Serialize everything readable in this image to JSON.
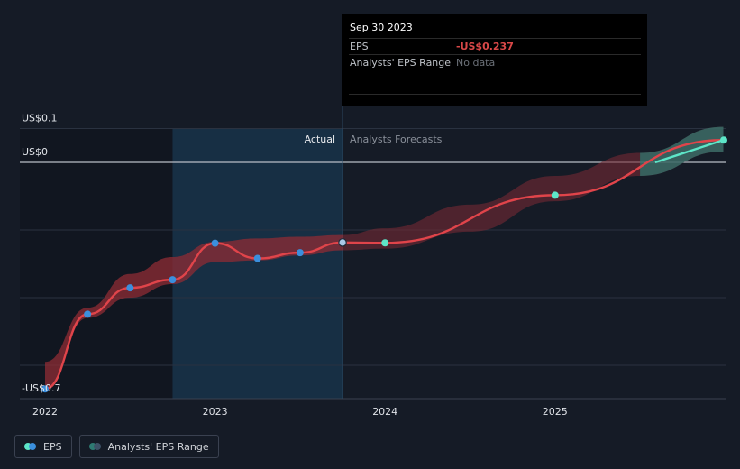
{
  "chart_data": {
    "type": "line",
    "y_ticks": [
      {
        "value": 0.1,
        "label": "US$0.1"
      },
      {
        "value": 0,
        "label": "US$0"
      },
      {
        "value": -0.7,
        "label": "-US$0.7"
      }
    ],
    "x_ticks": [
      {
        "value": 2022.0,
        "label": "2022"
      },
      {
        "value": 2023.0,
        "label": "2023"
      },
      {
        "value": 2024.0,
        "label": "2024"
      },
      {
        "value": 2025.0,
        "label": "2025"
      }
    ],
    "ylim": [
      -0.7,
      0.1
    ],
    "xlim": [
      2021.93,
      2025.99
    ],
    "divider_x": 2023.75,
    "divider_labels": {
      "left": "Actual",
      "right": "Analysts Forecasts"
    },
    "series": [
      {
        "name": "EPS",
        "points": [
          {
            "x": 2022.0,
            "y": -0.67,
            "segment": "actual"
          },
          {
            "x": 2022.25,
            "y": -0.449,
            "segment": "actual"
          },
          {
            "x": 2022.5,
            "y": -0.371,
            "segment": "actual"
          },
          {
            "x": 2022.75,
            "y": -0.347,
            "segment": "actual"
          },
          {
            "x": 2023.0,
            "y": -0.239,
            "segment": "actual"
          },
          {
            "x": 2023.25,
            "y": -0.284,
            "segment": "actual"
          },
          {
            "x": 2023.5,
            "y": -0.267,
            "segment": "actual"
          },
          {
            "x": 2023.75,
            "y": -0.237,
            "segment": "actual"
          },
          {
            "x": 2024.0,
            "y": -0.238,
            "segment": "forecast"
          },
          {
            "x": 2025.0,
            "y": -0.097,
            "segment": "forecast"
          },
          {
            "x": 2025.99,
            "y": 0.066,
            "segment": "forecast"
          }
        ]
      },
      {
        "name": "Analysts' EPS Range",
        "range": [
          {
            "x": 2022.0,
            "low": -0.67,
            "high": -0.59
          },
          {
            "x": 2022.25,
            "low": -0.46,
            "high": -0.43
          },
          {
            "x": 2022.5,
            "low": -0.4,
            "high": -0.33
          },
          {
            "x": 2022.75,
            "low": -0.36,
            "high": -0.28
          },
          {
            "x": 2023.0,
            "low": -0.295,
            "high": -0.235
          },
          {
            "x": 2023.25,
            "low": -0.29,
            "high": -0.225
          },
          {
            "x": 2023.5,
            "low": -0.275,
            "high": -0.22
          },
          {
            "x": 2023.75,
            "low": -0.26,
            "high": -0.215
          },
          {
            "x": 2024.0,
            "low": -0.255,
            "high": -0.195
          },
          {
            "x": 2024.5,
            "low": -0.205,
            "high": -0.125
          },
          {
            "x": 2025.0,
            "low": -0.115,
            "high": -0.04
          },
          {
            "x": 2025.5,
            "low": -0.04,
            "high": 0.028
          },
          {
            "x": 2025.99,
            "low": 0.032,
            "high": 0.105
          }
        ]
      }
    ],
    "grid": true
  },
  "tooltip": {
    "date": "Sep 30 2023",
    "eps_label": "EPS",
    "eps_value": "-US$0.237",
    "range_label": "Analysts' EPS Range",
    "range_value": "No data"
  },
  "legend": {
    "items": [
      {
        "label": "EPS"
      },
      {
        "label": "Analysts' EPS Range"
      }
    ]
  },
  "colors": {
    "background": "#151b26",
    "eps_line": "#e0444a",
    "actual_dot": "#3b8fdd",
    "forecast_dot": "#5de6c8",
    "forecast_line": "#5de6c8",
    "range_actual": "#8f2c34",
    "range_forecast": "#742a33",
    "range_teal": "#2e7a72",
    "highlight_band": "#17324a"
  }
}
